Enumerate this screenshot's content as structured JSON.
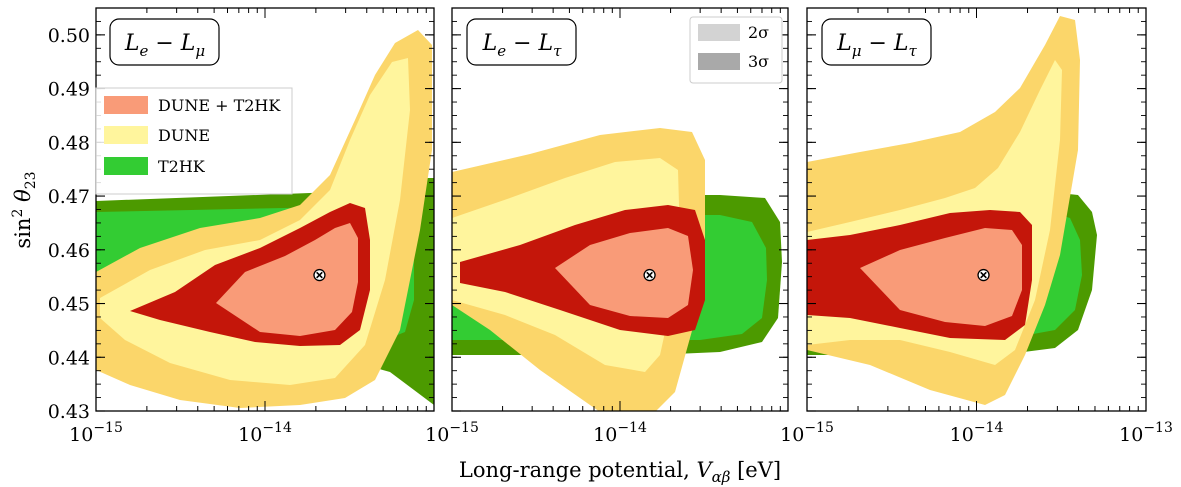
{
  "figure": {
    "xlabel": "Long-range potential, V_αβ [eV]",
    "ylabel": "sin² θ₂₃"
  },
  "legend_main": {
    "placement": "left, upper part of first panel",
    "entries": [
      {
        "label": "DUNE + T2HK",
        "color": "#f99b78"
      },
      {
        "label": "DUNE",
        "color": "#fff59d"
      },
      {
        "label": "T2HK",
        "color": "#33cc33"
      }
    ]
  },
  "legend_sigma": {
    "placement": "top-right of second panel",
    "entries": [
      {
        "label": "2σ",
        "color": "#d3d3d3"
      },
      {
        "label": "3σ",
        "color": "#a9a9a9"
      }
    ]
  },
  "colors": {
    "dune_t2hk_2sigma": "#f99b78",
    "dune_t2hk_3sigma": "#c4160a",
    "dune_2sigma": "#fff59d",
    "dune_3sigma": "#fbd66a",
    "t2hk_2sigma": "#33cc33",
    "t2hk_3sigma": "#4c9a00"
  },
  "chart_data": [
    {
      "type": "area",
      "panel_label": "L_e − L_μ",
      "x_scale": "log",
      "xlim": [
        1e-15,
        1e-13
      ],
      "ylim": [
        0.43,
        0.505
      ],
      "x_tick_labels": [
        "10^−15",
        "10^−14"
      ],
      "y_ticks": [
        0.43,
        0.44,
        0.45,
        0.46,
        0.47,
        0.48,
        0.49,
        0.5
      ],
      "best_fit": {
        "x": 2.1e-14,
        "y": 0.4553
      },
      "series": [
        {
          "name": "T2HK",
          "level": "3σ",
          "x_range": [
            1e-15,
            9e-14
          ],
          "y_range": [
            0.441,
            0.475
          ]
        },
        {
          "name": "T2HK",
          "level": "2σ",
          "x_range": [
            1e-15,
            7.5e-14
          ],
          "y_range": [
            0.443,
            0.4705
          ]
        },
        {
          "name": "DUNE",
          "level": "3σ",
          "x_range": [
            1e-15,
            6.3e-14
          ],
          "y_range": [
            0.431,
            0.503
          ]
        },
        {
          "name": "DUNE",
          "level": "2σ",
          "x_range": [
            1.5e-15,
            5.2e-14
          ],
          "y_range": [
            0.433,
            0.497
          ]
        },
        {
          "name": "DUNE + T2HK",
          "level": "3σ",
          "x_range": [
            1.5e-15,
            3.7e-14
          ],
          "y_range": [
            0.444,
            0.4705
          ]
        },
        {
          "name": "DUNE + T2HK",
          "level": "2σ",
          "x_range": [
            5.5e-15,
            3.5e-14
          ],
          "y_range": [
            0.446,
            0.4665
          ]
        }
      ]
    },
    {
      "type": "area",
      "panel_label": "L_e − L_τ",
      "x_scale": "log",
      "xlim": [
        1e-15,
        1e-13
      ],
      "ylim": [
        0.43,
        0.505
      ],
      "x_tick_labels": [
        "10^−15",
        "10^−14"
      ],
      "y_ticks": [
        0.43,
        0.44,
        0.45,
        0.46,
        0.47,
        0.48,
        0.49,
        0.5
      ],
      "best_fit": {
        "x": 1.5e-14,
        "y": 0.4553
      },
      "series": [
        {
          "name": "T2HK",
          "level": "3σ",
          "x_range": [
            1e-15,
            8e-14
          ],
          "y_range": [
            0.442,
            0.4725
          ]
        },
        {
          "name": "T2HK",
          "level": "2σ",
          "x_range": [
            1e-15,
            6.5e-14
          ],
          "y_range": [
            0.444,
            0.4695
          ]
        },
        {
          "name": "DUNE",
          "level": "3σ",
          "x_range": [
            1e-15,
            3.6e-14
          ],
          "y_range": [
            0.4315,
            0.4845
          ]
        },
        {
          "name": "DUNE",
          "level": "2σ",
          "x_range": [
            1e-15,
            3.1e-14
          ],
          "y_range": [
            0.4365,
            0.4785
          ]
        },
        {
          "name": "DUNE + T2HK",
          "level": "3σ",
          "x_range": [
            1e-15,
            2.8e-14
          ],
          "y_range": [
            0.4475,
            0.4685
          ]
        },
        {
          "name": "DUNE + T2HK",
          "level": "2σ",
          "x_range": [
            2.4e-15,
            2.55e-14
          ],
          "y_range": [
            0.4485,
            0.4635
          ]
        }
      ]
    },
    {
      "type": "area",
      "panel_label": "L_μ − L_τ",
      "x_scale": "log",
      "xlim": [
        1e-15,
        1e-13
      ],
      "ylim": [
        0.43,
        0.505
      ],
      "x_tick_labels": [
        "10^−15",
        "10^−14",
        "10^−13"
      ],
      "y_ticks": [
        0.43,
        0.44,
        0.45,
        0.46,
        0.47,
        0.48,
        0.49,
        0.5
      ],
      "best_fit": {
        "x": 1.1e-14,
        "y": 0.4553
      },
      "series": [
        {
          "name": "T2HK",
          "level": "3σ",
          "x_range": [
            1e-15,
            5e-14
          ],
          "y_range": [
            0.441,
            0.4735
          ]
        },
        {
          "name": "T2HK",
          "level": "2σ",
          "x_range": [
            1e-15,
            4.2e-14
          ],
          "y_range": [
            0.443,
            0.4705
          ]
        },
        {
          "name": "DUNE",
          "level": "3σ",
          "x_range": [
            1e-15,
            3.2e-14
          ],
          "y_range": [
            0.432,
            0.5065
          ]
        },
        {
          "name": "DUNE",
          "level": "2σ",
          "x_range": [
            1e-15,
            2.8e-14
          ],
          "y_range": [
            0.4355,
            0.501
          ]
        },
        {
          "name": "DUNE + T2HK",
          "level": "3σ",
          "x_range": [
            1e-15,
            2.1e-14
          ],
          "y_range": [
            0.446,
            0.4685
          ]
        },
        {
          "name": "DUNE + T2HK",
          "level": "2σ",
          "x_range": [
            1.8e-15,
            1.95e-14
          ],
          "y_range": [
            0.4485,
            0.465
          ]
        }
      ]
    }
  ]
}
